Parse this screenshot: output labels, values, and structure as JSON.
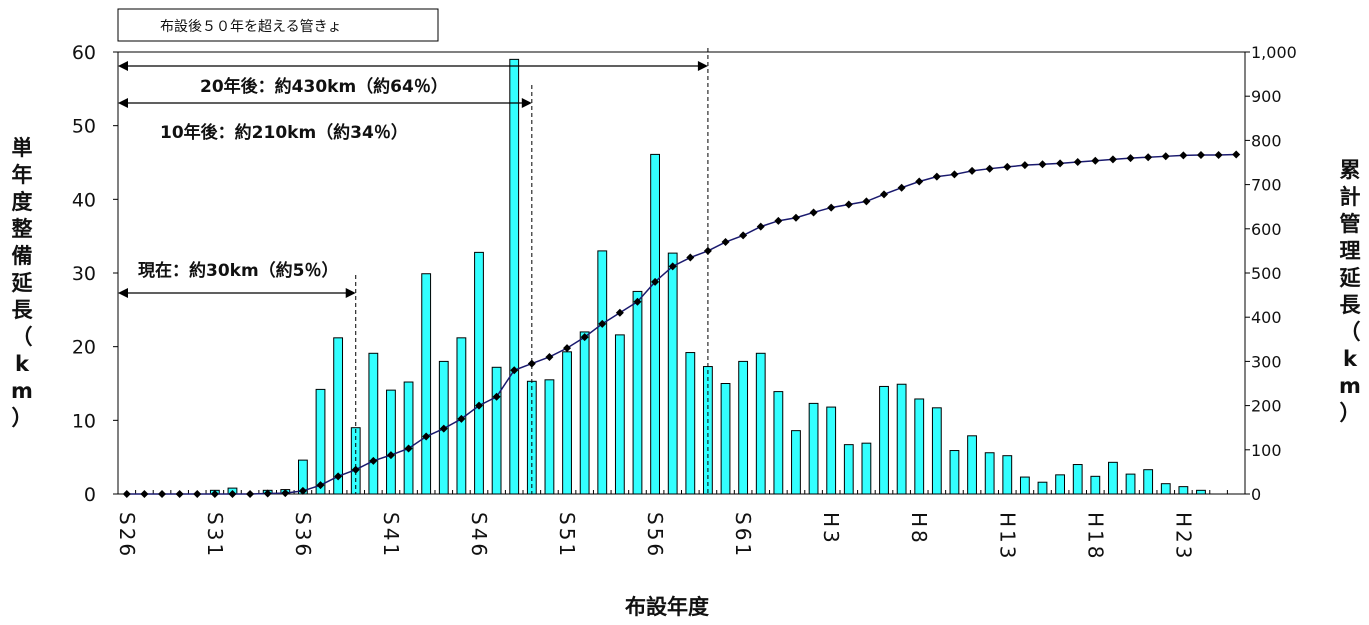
{
  "chart_data": {
    "type": "bar",
    "title": "布設後５０年を超える管きょ",
    "xlabel": "布設年度",
    "ylabel_left": "単年度整備延長（km）",
    "ylabel_right": "累計管理延長（km）",
    "ylim_left": [
      0,
      60
    ],
    "ylim_right": [
      0,
      1000
    ],
    "yticks_left": [
      "0",
      "10",
      "20",
      "30",
      "40",
      "50",
      "60"
    ],
    "yticks_right": [
      "0",
      "100",
      "200",
      "300",
      "400",
      "500",
      "600",
      "700",
      "800",
      "900",
      "1,000"
    ],
    "categories": [
      "S26",
      "S27",
      "S28",
      "S29",
      "S30",
      "S31",
      "S32",
      "S33",
      "S34",
      "S35",
      "S36",
      "S37",
      "S38",
      "S39",
      "S40",
      "S41",
      "S42",
      "S43",
      "S44",
      "S45",
      "S46",
      "S47",
      "S48",
      "S49",
      "S50",
      "S51",
      "S52",
      "S53",
      "S54",
      "S55",
      "S56",
      "S57",
      "S58",
      "S59",
      "S60",
      "S61",
      "S62",
      "S63",
      "H1",
      "H2",
      "H3",
      "H4",
      "H5",
      "H6",
      "H7",
      "H8",
      "H9",
      "H10",
      "H11",
      "H12",
      "H13",
      "H14",
      "H15",
      "H16",
      "H17",
      "H18",
      "H19",
      "H20",
      "H21",
      "H22",
      "H23",
      "H24",
      "H25",
      "H26"
    ],
    "x_tick_labels": [
      "S26",
      "S31",
      "S36",
      "S41",
      "S46",
      "S51",
      "S56",
      "S61",
      "H3",
      "H8",
      "H13",
      "H18",
      "H23"
    ],
    "series": [
      {
        "kind": "bar",
        "axis": "left",
        "color": "#33ffff",
        "values": [
          0,
          0,
          0,
          0,
          0,
          0.5,
          0.8,
          0,
          0.5,
          0.6,
          4.6,
          14.2,
          21.2,
          9.0,
          19.1,
          14.1,
          15.2,
          29.9,
          18.0,
          21.2,
          32.8,
          17.2,
          59.0,
          15.3,
          15.5,
          19.3,
          22.0,
          33.0,
          21.6,
          27.5,
          46.1,
          32.7,
          19.2,
          17.3,
          15.0,
          18.0,
          19.1,
          13.9,
          8.6,
          12.3,
          11.8,
          6.7,
          6.9,
          14.6,
          14.9,
          12.9,
          11.7,
          5.9,
          7.9,
          5.6,
          5.2,
          2.3,
          1.6,
          2.6,
          4.0,
          2.4,
          4.3,
          2.7,
          3.3,
          1.4,
          1.0,
          0.5,
          0,
          0
        ]
      },
      {
        "kind": "line",
        "axis": "right",
        "color": "#1a1a6e",
        "values": [
          0,
          0,
          0,
          0,
          0,
          0,
          0,
          0,
          1,
          2,
          7,
          20,
          40,
          55,
          75,
          88,
          103,
          130,
          148,
          170,
          200,
          220,
          280,
          295,
          310,
          330,
          355,
          385,
          410,
          435,
          480,
          515,
          535,
          550,
          570,
          585,
          605,
          618,
          625,
          637,
          648,
          655,
          662,
          678,
          693,
          707,
          718,
          723,
          731,
          736,
          740,
          744,
          746,
          748,
          751,
          754,
          757,
          760,
          762,
          764,
          766,
          767,
          767,
          768
        ]
      }
    ],
    "annotations": [
      {
        "text": "現在：約30km（約5％）",
        "from": "S26",
        "to": "S39"
      },
      {
        "text": "10年後：約210km（約34％）",
        "from": "S26",
        "to": "S49"
      },
      {
        "text": "20年後：約430km（約64％）",
        "from": "S26",
        "to": "S59"
      }
    ],
    "grid": false,
    "legend": "none"
  }
}
